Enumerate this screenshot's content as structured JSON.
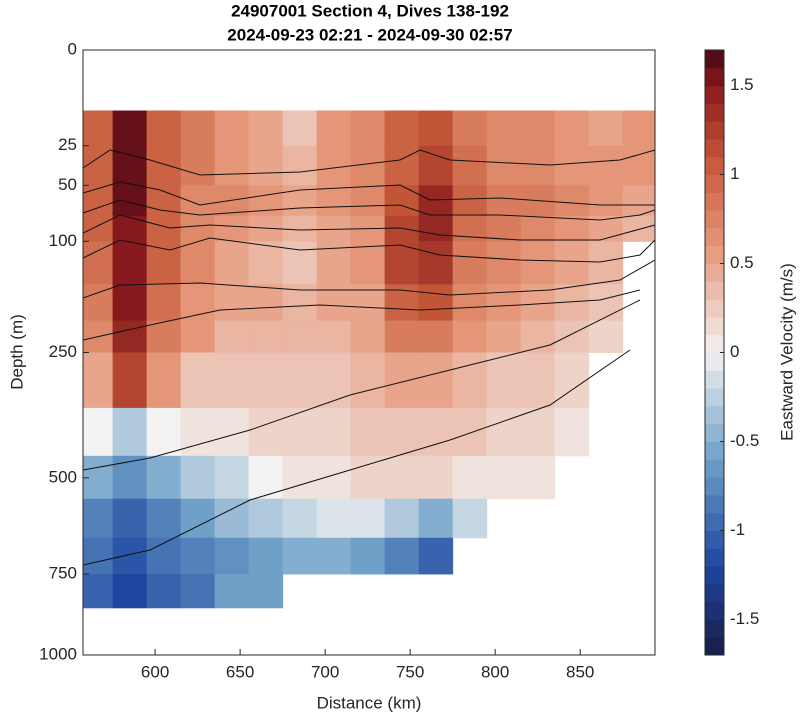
{
  "chart_data": {
    "type": "heatmap",
    "title": "24907001 Section 4, Dives 138-192",
    "subtitle": "2024-09-23 02:21 - 2024-09-30 02:57",
    "x_label": "Distance (km)",
    "y_label": "Depth (m)",
    "colorbar_label": "Eastward Velocity (m/s)",
    "xlim": [
      557.6,
      894
    ],
    "xticks": [
      600,
      650,
      700,
      750,
      800,
      850
    ],
    "ylim": [
      0,
      1000
    ],
    "yticks": [
      0,
      25,
      50,
      100,
      250,
      500,
      750,
      1000
    ],
    "yscale": "sqrt",
    "y_direction": "reverse",
    "clim": [
      -1.7,
      1.7
    ],
    "cticks": [
      -1.5,
      -1,
      -0.5,
      0,
      0.5,
      1,
      1.5
    ],
    "x": [
      565,
      585,
      605,
      625,
      645,
      665,
      685,
      705,
      725,
      745,
      765,
      785,
      805,
      825,
      845,
      865,
      885
    ],
    "depth_edges": [
      10,
      25,
      50,
      75,
      100,
      150,
      200,
      250,
      350,
      450,
      550,
      650,
      750,
      850
    ],
    "values": [
      [
        1.0,
        1.0,
        1.0,
        1.0,
        0.9,
        0.8,
        0.7,
        0.5,
        0.0,
        -0.5,
        -0.8,
        -0.9,
        -1.0
      ],
      [
        1.6,
        1.6,
        1.6,
        1.5,
        1.5,
        1.5,
        1.4,
        1.2,
        -0.3,
        -0.7,
        -1.0,
        -1.1,
        -1.2
      ],
      [
        1.0,
        1.0,
        1.0,
        1.0,
        1.0,
        0.9,
        0.8,
        0.6,
        0.0,
        -0.5,
        -0.8,
        -0.9,
        -1.0
      ],
      [
        0.8,
        0.8,
        0.7,
        0.7,
        0.7,
        0.6,
        0.6,
        0.3,
        0.1,
        -0.3,
        -0.6,
        -0.8,
        -0.9
      ],
      [
        0.6,
        0.6,
        0.7,
        0.6,
        0.5,
        0.5,
        0.4,
        0.3,
        0.1,
        -0.2,
        -0.4,
        -0.7,
        -0.6
      ],
      [
        0.5,
        0.5,
        0.6,
        0.5,
        0.4,
        0.5,
        0.4,
        0.3,
        0.2,
        0.0,
        -0.3,
        -0.6,
        -0.6
      ],
      [
        0.3,
        0.4,
        0.5,
        0.4,
        0.3,
        0.4,
        0.4,
        0.3,
        0.2,
        0.1,
        -0.2,
        -0.5,
        null
      ],
      [
        0.6,
        0.6,
        0.6,
        0.5,
        0.5,
        0.5,
        0.4,
        0.3,
        0.2,
        0.1,
        -0.1,
        -0.5,
        null
      ],
      [
        0.7,
        0.7,
        0.7,
        0.6,
        0.6,
        0.5,
        0.5,
        0.4,
        0.3,
        0.2,
        -0.1,
        -0.6,
        null
      ],
      [
        1.0,
        1.0,
        1.1,
        1.2,
        1.2,
        1.0,
        0.8,
        0.5,
        0.3,
        0.2,
        -0.3,
        -0.8,
        null
      ],
      [
        1.1,
        1.2,
        1.4,
        1.4,
        1.3,
        1.1,
        0.8,
        0.5,
        0.3,
        0.2,
        -0.5,
        -1.0,
        null
      ],
      [
        0.8,
        0.9,
        1.0,
        0.9,
        0.8,
        0.7,
        0.6,
        0.4,
        0.3,
        0.1,
        -0.2,
        null,
        null
      ],
      [
        0.7,
        0.7,
        0.8,
        0.8,
        0.7,
        0.6,
        0.5,
        0.3,
        0.2,
        0.1,
        null,
        null,
        null
      ],
      [
        0.7,
        0.7,
        0.8,
        0.7,
        0.6,
        0.5,
        0.4,
        0.3,
        0.2,
        0.1,
        null,
        null,
        null
      ],
      [
        0.6,
        0.6,
        0.7,
        0.6,
        0.5,
        0.4,
        0.3,
        0.2,
        0.1,
        null,
        null,
        null,
        null
      ],
      [
        0.5,
        0.6,
        0.6,
        0.5,
        0.4,
        0.3,
        0.2,
        null,
        null,
        null,
        null,
        null,
        null
      ],
      [
        0.6,
        0.6,
        0.5,
        0.4,
        null,
        null,
        null,
        null,
        null,
        null,
        null,
        null,
        null
      ]
    ]
  }
}
